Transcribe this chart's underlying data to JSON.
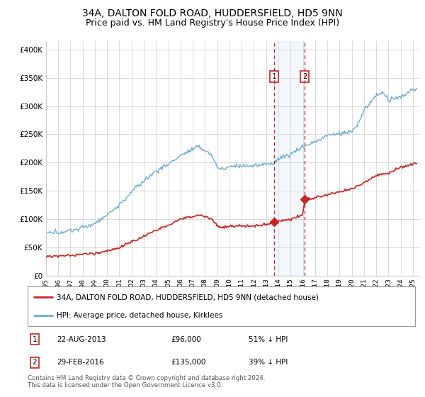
{
  "title": "34A, DALTON FOLD ROAD, HUDDERSFIELD, HD5 9NN",
  "subtitle": "Price paid vs. HM Land Registry's House Price Index (HPI)",
  "title_fontsize": 10,
  "subtitle_fontsize": 9,
  "ylabel_ticks": [
    "£0",
    "£50K",
    "£100K",
    "£150K",
    "£200K",
    "£250K",
    "£300K",
    "£350K",
    "£400K"
  ],
  "ytick_vals": [
    0,
    50000,
    100000,
    150000,
    200000,
    250000,
    300000,
    350000,
    400000
  ],
  "ylim": [
    0,
    415000
  ],
  "xlim_start": 1995.0,
  "xlim_end": 2025.5,
  "xtick_years": [
    1995,
    1996,
    1997,
    1998,
    1999,
    2000,
    2001,
    2002,
    2003,
    2004,
    2005,
    2006,
    2007,
    2008,
    2009,
    2010,
    2011,
    2012,
    2013,
    2014,
    2015,
    2016,
    2017,
    2018,
    2019,
    2020,
    2021,
    2022,
    2023,
    2024,
    2025
  ],
  "hpi_color": "#6baed6",
  "price_color": "#cc2222",
  "annotation_box_color": "#cc2222",
  "annotation_fill": "#dce9f5",
  "annotation_line_color": "#cc2222",
  "legend_label_red": "34A, DALTON FOLD ROAD, HUDDERSFIELD, HD5 9NN (detached house)",
  "legend_label_blue": "HPI: Average price, detached house, Kirklees",
  "point1_label": "1",
  "point1_date": "22-AUG-2013",
  "point1_price": "£96,000",
  "point1_pct": "51% ↓ HPI",
  "point1_x": 2013.64,
  "point1_y": 96000,
  "point2_label": "2",
  "point2_date": "29-FEB-2016",
  "point2_price": "£135,000",
  "point2_pct": "39% ↓ HPI",
  "point2_x": 2016.16,
  "point2_y": 135000,
  "footnote": "Contains HM Land Registry data © Crown copyright and database right 2024.\nThis data is licensed under the Open Government Licence v3.0.",
  "grid_color": "#cccccc",
  "background_color": "#ffffff"
}
